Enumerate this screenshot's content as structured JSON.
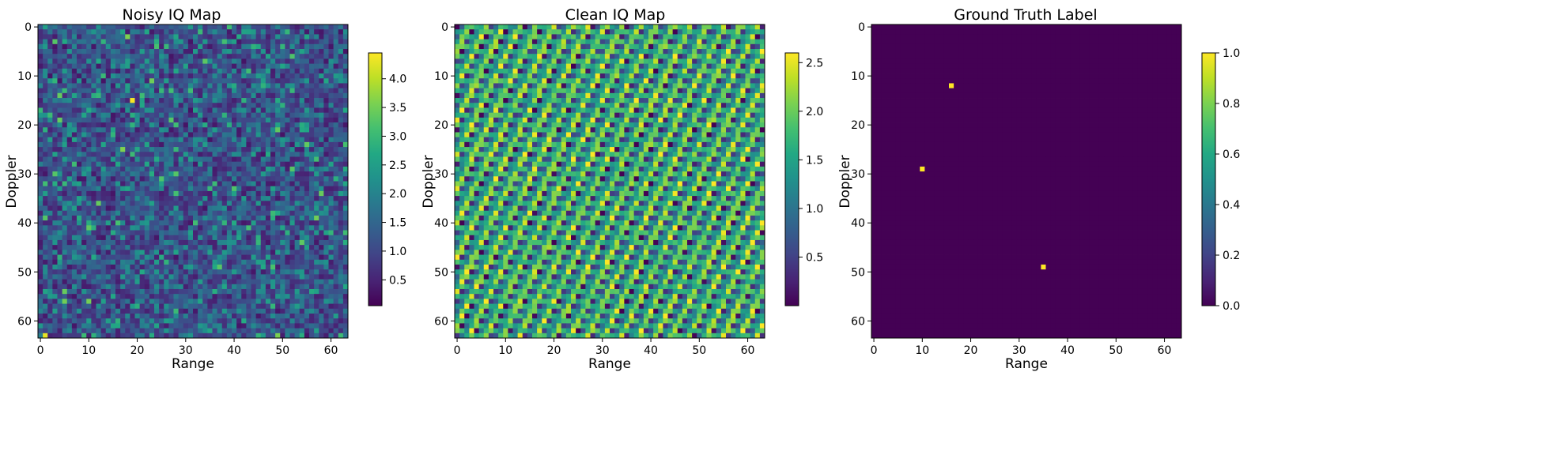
{
  "chart_data": [
    {
      "type": "heatmap",
      "title": "Noisy IQ Map",
      "xlabel": "Range",
      "ylabel": "Doppler",
      "grid_size": [
        64,
        64
      ],
      "x_ticks": [
        "0",
        "10",
        "20",
        "30",
        "40",
        "50",
        "60"
      ],
      "y_ticks": [
        "0",
        "10",
        "20",
        "30",
        "40",
        "50",
        "60"
      ],
      "colormap": "viridis",
      "value_range": [
        0.05,
        4.45
      ],
      "colorbar_ticks": [
        "0.5",
        "1.0",
        "1.5",
        "2.0",
        "2.5",
        "3.0",
        "3.5",
        "4.0"
      ],
      "description_pattern": "random noise field",
      "hotspots": [
        {
          "x": 19,
          "y": 15,
          "value": 4.4
        },
        {
          "x": 1,
          "y": 63,
          "value": 4.3
        },
        {
          "x": 17,
          "y": 25,
          "value": 3.6
        }
      ]
    },
    {
      "type": "heatmap",
      "title": "Clean IQ Map",
      "xlabel": "Range",
      "ylabel": "Doppler",
      "grid_size": [
        64,
        64
      ],
      "x_ticks": [
        "0",
        "10",
        "20",
        "30",
        "40",
        "50",
        "60"
      ],
      "y_ticks": [
        "0",
        "10",
        "20",
        "30",
        "40",
        "50",
        "60"
      ],
      "colormap": "viridis",
      "value_range": [
        0.0,
        2.6
      ],
      "colorbar_ticks": [
        "0.5",
        "1.0",
        "1.5",
        "2.0",
        "2.5"
      ],
      "description_pattern": "diagonal interference pattern"
    },
    {
      "type": "heatmap",
      "title": "Ground Truth Label",
      "xlabel": "Range",
      "ylabel": "Doppler",
      "grid_size": [
        64,
        64
      ],
      "x_ticks": [
        "0",
        "10",
        "20",
        "30",
        "40",
        "50",
        "60"
      ],
      "y_ticks": [
        "0",
        "10",
        "20",
        "30",
        "40",
        "50",
        "60"
      ],
      "colormap": "viridis",
      "value_range": [
        0.0,
        1.0
      ],
      "colorbar_ticks": [
        "0.0",
        "0.2",
        "0.4",
        "0.6",
        "0.8",
        "1.0"
      ],
      "background_value": 0,
      "targets": [
        {
          "x": 16,
          "y": 12,
          "value": 1
        },
        {
          "x": 10,
          "y": 29,
          "value": 1
        },
        {
          "x": 35,
          "y": 49,
          "value": 1
        }
      ]
    }
  ]
}
